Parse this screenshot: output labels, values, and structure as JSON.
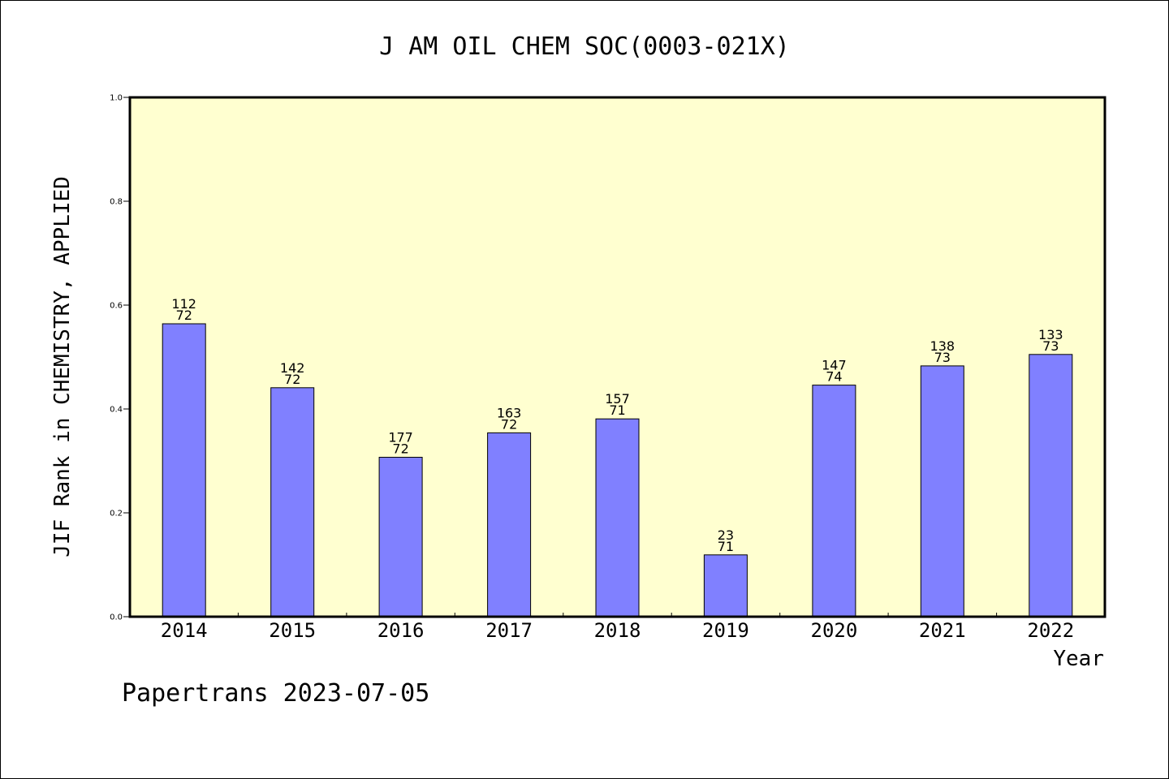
{
  "chart_data": {
    "type": "bar",
    "title": "J AM OIL CHEM SOC(0003-021X)",
    "xlabel": "Year",
    "ylabel": "JIF Rank in CHEMISTRY, APPLIED",
    "categories": [
      "2014",
      "2015",
      "2016",
      "2017",
      "2018",
      "2019",
      "2020",
      "2021",
      "2022"
    ],
    "values": [
      0.564,
      0.441,
      0.307,
      0.354,
      0.381,
      0.119,
      0.446,
      0.483,
      0.505
    ],
    "labels": [
      {
        "rank": "112",
        "total": "72"
      },
      {
        "rank": "142",
        "total": "72"
      },
      {
        "rank": "177",
        "total": "72"
      },
      {
        "rank": "163",
        "total": "72"
      },
      {
        "rank": "157",
        "total": "71"
      },
      {
        "rank": "23",
        "total": "71"
      },
      {
        "rank": "147",
        "total": "74"
      },
      {
        "rank": "138",
        "total": "73"
      },
      {
        "rank": "133",
        "total": "73"
      }
    ],
    "ylim": [
      0,
      1.0
    ],
    "yticks": [
      "0.0",
      "0.2",
      "0.4",
      "0.6",
      "0.8",
      "1.0"
    ],
    "grid": false,
    "colors": {
      "plot_background": "#ffffd0",
      "bar_fill": "#8080ff",
      "bar_stroke": "#000000"
    }
  },
  "footer": {
    "text": "Papertrans 2023-07-05"
  }
}
